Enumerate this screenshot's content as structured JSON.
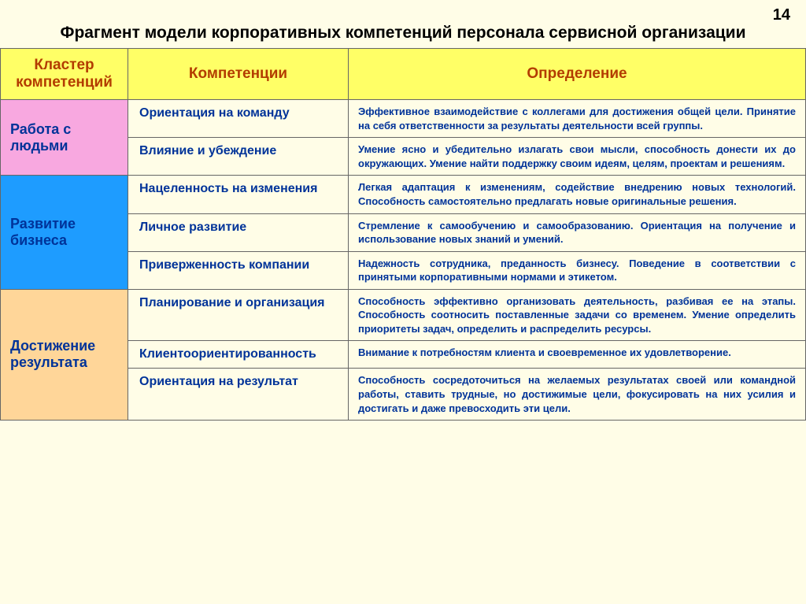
{
  "page_number": "14",
  "title": "Фрагмент модели корпоративных компетенций персонала сервисной организации",
  "headers": {
    "cluster": "Кластер компетенций",
    "competency": "Компетенции",
    "definition": "Определение"
  },
  "colors": {
    "background": "#fffde7",
    "header_bg": "#ffff66",
    "header_text": "#b33c00",
    "cell_text": "#003399",
    "cluster1_bg": "#f8a8e0",
    "cluster1_text": "#003399",
    "cluster2_bg": "#1e9cff",
    "cluster2_text": "#003399",
    "cluster3_bg": "#ffd699",
    "cluster3_text": "#003399"
  },
  "clusters": [
    {
      "name": "Работа с людьми",
      "bg": "#f8a8e0",
      "text_color": "#003399",
      "rows": [
        {
          "competency": "Ориентация на команду",
          "definition": "Эффективное взаимодействие с коллегами для достижения общей цели. Принятие на себя ответственности за результаты деятельности всей группы."
        },
        {
          "competency": "Влияние и убеждение",
          "definition": "Умение ясно и убедительно излагать свои мысли, способность донести их до окружающих. Умение найти поддержку своим идеям, целям, проектам и решениям."
        }
      ]
    },
    {
      "name": "Развитие бизнеса",
      "bg": "#1e9cff",
      "text_color": "#003399",
      "rows": [
        {
          "competency": "Нацеленность на изменения",
          "definition": "Легкая адаптация к изменениям, содействие внедрению новых технологий. Способность самостоятельно предлагать новые оригинальные решения."
        },
        {
          "competency": "Личное развитие",
          "definition": "Стремление к самообучению и самообразованию. Ориентация на получение и использование новых знаний и умений."
        },
        {
          "competency": "Приверженность компании",
          "definition": "Надежность сотрудника, преданность бизнесу. Поведение в соответствии с принятыми корпоративными нормами и этикетом."
        }
      ]
    },
    {
      "name": "Достижение результата",
      "bg": "#ffd699",
      "text_color": "#003399",
      "rows": [
        {
          "competency": "Планирование и организация",
          "definition": "Способность эффективно организовать деятельность, разбивая ее на этапы. Способность соотносить поставленные задачи со временем. Умение определить приоритеты задач, определить и распределить ресурсы."
        },
        {
          "competency": "Клиентоориентированность",
          "definition": "Внимание к потребностям клиента и своевременное их удовлетворение."
        },
        {
          "competency": "Ориентация на результат",
          "definition": "Способность сосредоточиться на желаемых результатах своей или командной работы, ставить трудные, но достижимые цели, фокусировать на них усилия и достигать и даже превосходить эти цели."
        }
      ]
    }
  ]
}
